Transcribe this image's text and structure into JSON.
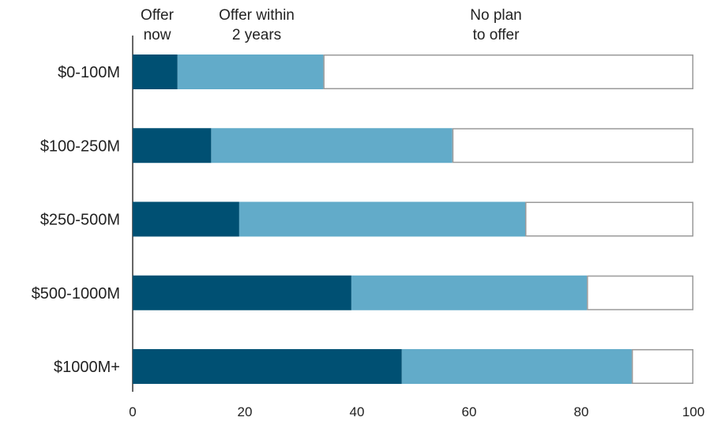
{
  "chart_data": {
    "type": "bar",
    "orientation": "horizontal",
    "stacked": true,
    "categories": [
      "$0-100M",
      "$100-250M",
      "$250-500M",
      "$500-1000M",
      "$1000M+"
    ],
    "series": [
      {
        "name": "Offer now",
        "label_lines": [
          "Offer",
          "now"
        ],
        "color": "#005073",
        "values": [
          8,
          14,
          19,
          39,
          48
        ]
      },
      {
        "name": "Offer within 2 years",
        "label_lines": [
          "Offer within",
          "2 years"
        ],
        "color": "#62abc9",
        "values": [
          26,
          43,
          51,
          42,
          41
        ]
      },
      {
        "name": "No plan to offer",
        "label_lines": [
          "No plan",
          "to offer"
        ],
        "color": "#ffffff",
        "stroke": "#9a9a9a",
        "values": [
          66,
          43,
          30,
          19,
          11
        ]
      }
    ],
    "xlim": [
      0,
      100
    ],
    "xticks": [
      0,
      20,
      40,
      60,
      80,
      100
    ],
    "legend_position": "top, above each segment"
  }
}
